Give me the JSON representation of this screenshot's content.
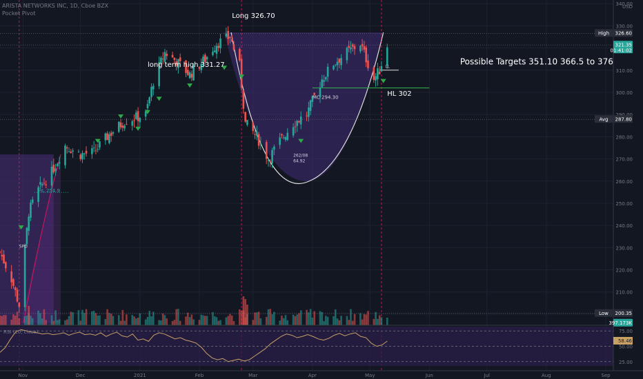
{
  "header": {
    "title": "ARISTA NETWORKS INC, 1D, Cboe BZX",
    "indicator": "Pocket Pivot",
    "currency": "USD"
  },
  "colors": {
    "background": "#131722",
    "up": "#26a69a",
    "down": "#ef5350",
    "grid": "#1e2230",
    "purple_fill": "#4a2d7a",
    "rsi_line": "#c8a165",
    "annotation_white": "#ffffff",
    "signal_green": "#2ea84a"
  },
  "chart_data": [
    {
      "type": "candlestick",
      "ticker": "ARISTA NETWORKS INC",
      "interval": "1D",
      "y_axis": {
        "min": 195,
        "max": 341,
        "ticks": [
          200,
          210,
          220,
          230,
          240,
          250,
          260,
          270,
          280,
          290,
          300,
          310,
          320,
          330,
          340
        ],
        "tick_labels": [
          "200.00",
          "210.00",
          "220.00",
          "230.00",
          "240.00",
          "250.00",
          "260.00",
          "270.00",
          "280.00",
          "290.00",
          "300.00",
          "310.00",
          "320.00",
          "330.00",
          "340.00"
        ]
      },
      "x_axis": {
        "start": "2020-10-20",
        "end": "2021-09-01",
        "tick_labels": [
          "Nov",
          "Dec",
          "2021",
          "Feb",
          "Mar",
          "Apr",
          "May",
          "Jun",
          "Jul",
          "Aug",
          "Sep"
        ],
        "tick_dates": [
          "2020-11-01",
          "2020-12-01",
          "2021-01-01",
          "2021-02-01",
          "2021-03-01",
          "2021-04-01",
          "2021-05-01",
          "2021-06-01",
          "2021-07-01",
          "2021-08-01",
          "2021-09-01"
        ]
      },
      "price_path": [
        {
          "date": "2020-10-20",
          "close": 228
        },
        {
          "date": "2020-10-26",
          "close": 216
        },
        {
          "date": "2020-10-30",
          "close": 204
        },
        {
          "date": "2020-11-04",
          "close": 246
        },
        {
          "date": "2020-11-09",
          "close": 256
        },
        {
          "date": "2020-11-16",
          "close": 264
        },
        {
          "date": "2020-11-23",
          "close": 276
        },
        {
          "date": "2020-12-01",
          "close": 272
        },
        {
          "date": "2020-12-08",
          "close": 273
        },
        {
          "date": "2020-12-16",
          "close": 281
        },
        {
          "date": "2020-12-24",
          "close": 287
        },
        {
          "date": "2021-01-04",
          "close": 290
        },
        {
          "date": "2021-01-08",
          "close": 305
        },
        {
          "date": "2021-01-14",
          "close": 318
        },
        {
          "date": "2021-01-20",
          "close": 314
        },
        {
          "date": "2021-01-27",
          "close": 308
        },
        {
          "date": "2021-02-04",
          "close": 315
        },
        {
          "date": "2021-02-10",
          "close": 322
        },
        {
          "date": "2021-02-17",
          "close": 325
        },
        {
          "date": "2021-02-22",
          "close": 312
        },
        {
          "date": "2021-02-25",
          "close": 286
        },
        {
          "date": "2021-03-03",
          "close": 280
        },
        {
          "date": "2021-03-09",
          "close": 270
        },
        {
          "date": "2021-03-15",
          "close": 278
        },
        {
          "date": "2021-03-22",
          "close": 286
        },
        {
          "date": "2021-03-29",
          "close": 290
        },
        {
          "date": "2021-04-06",
          "close": 306
        },
        {
          "date": "2021-04-12",
          "close": 313
        },
        {
          "date": "2021-04-19",
          "close": 318
        },
        {
          "date": "2021-04-26",
          "close": 322
        },
        {
          "date": "2021-05-03",
          "close": 306
        },
        {
          "date": "2021-05-06",
          "close": 310
        },
        {
          "date": "2021-05-10",
          "close": 321.35
        }
      ],
      "price_labels": [
        {
          "label": "High",
          "value": "326.60",
          "y": 326.6
        },
        {
          "label": "",
          "value": "321.35",
          "sub": "01:41:02",
          "y": 321.35
        },
        {
          "label": "Avg",
          "value": "287.80",
          "y": 287.8
        },
        {
          "label": "Low",
          "value": "200.35",
          "y": 200.35
        },
        {
          "label": "",
          "value": "397.173K",
          "y": 196
        }
      ],
      "annotations": [
        {
          "text": "Long 326.70",
          "date": "2021-02-18",
          "y": 333.5
        },
        {
          "text": "long term high  331.27",
          "date": "2021-01-05",
          "y": 311.5
        },
        {
          "text": "Possible Targets 351.10     366.5 to 376",
          "date": "2021-06-17",
          "y": 312.5
        },
        {
          "text": "HL 254.9",
          "date": "2020-11-09",
          "y": 255
        },
        {
          "text": "HL 302",
          "date": "2021-05-10",
          "y": 298.5
        },
        {
          "text": "MC  294.30",
          "date": "2021-04-01",
          "y": 297
        },
        {
          "text": "262/08",
          "date": "2021-03-22",
          "y": 271
        },
        {
          "text": "64.92",
          "date": "2021-03-22",
          "y": 268.5
        },
        {
          "text": "LL",
          "date": "2021-05-09",
          "y": 311
        },
        {
          "text": "SPD",
          "date": "2020-10-30",
          "y": 230
        }
      ]
    },
    {
      "type": "line",
      "name": "RSI (10, close)",
      "y_axis": {
        "ticks": [
          25,
          50,
          75
        ],
        "tick_labels": [
          "25.00",
          "50.00",
          "75.00"
        ]
      },
      "last_value": "58.46",
      "values": [
        40,
        48,
        62,
        74,
        77,
        75,
        73,
        72,
        70,
        71,
        69,
        70,
        72,
        68,
        71,
        73,
        69,
        70,
        68,
        72,
        66,
        70,
        73,
        67,
        65,
        70,
        60,
        62,
        58,
        68,
        72,
        70,
        66,
        62,
        64,
        60,
        58,
        55,
        48,
        38,
        31,
        28,
        30,
        25,
        27,
        29,
        26,
        28,
        34,
        40,
        46,
        54,
        60,
        66,
        70,
        68,
        64,
        66,
        69,
        66,
        62,
        60,
        63,
        68,
        71,
        67,
        70,
        72,
        66,
        64,
        55,
        50,
        52,
        58.46
      ]
    },
    {
      "type": "bar",
      "name": "Volume",
      "last_value": "397.173K"
    }
  ]
}
